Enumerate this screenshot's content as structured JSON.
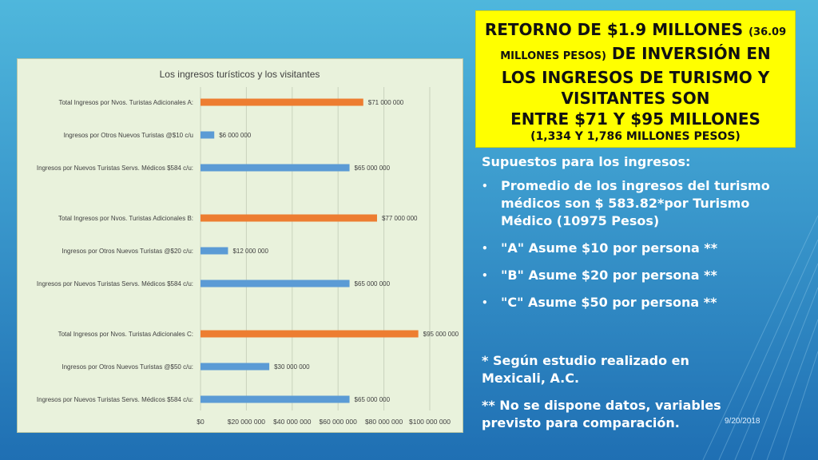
{
  "headline": {
    "part1": "RETORNO DE $1.9 MILLONES ",
    "part1_small": "(36.09",
    "part2_small": "MILLONES PESOS)",
    "part2": " DE INVERSIÓN EN",
    "line3": "LOS INGRESOS DE TURISMO Y",
    "line4": "VISITANTES SON",
    "line5": "ENTRE $71 Y $95 MILLONES",
    "line6": "(1,334 Y 1,786 MILLONES PESOS)"
  },
  "assumptions": {
    "heading": "Supuestos para los ingresos:",
    "items": [
      "Promedio de los ingresos del turismo médicos son $ 583.82*por Turismo Médico (10975 Pesos)",
      "\"A\" Asume $10 por persona **",
      "\"B\" Asume $20 por persona **",
      "\"C\" Asume $50 por persona **"
    ]
  },
  "footnotes": {
    "note1": "* Según estudio realizado en Mexicali, A.C.",
    "note2": "** No se dispone datos, variables previsto para comparación."
  },
  "date": "9/20/2018",
  "colors": {
    "blue_bar": "#5b9bd5",
    "orange_bar": "#ed7d31",
    "grid": "#c9d3bd",
    "headline_bg": "#ffff00"
  },
  "chart_data": {
    "type": "bar",
    "orientation": "horizontal",
    "title": "Los ingresos turísticos y los visitantes",
    "xlim": [
      0,
      100000000
    ],
    "x_ticks": [
      0,
      20000000,
      40000000,
      60000000,
      80000000,
      100000000
    ],
    "x_tick_labels": [
      "$0",
      "$20 000 000",
      "$40 000 000",
      "$60 000 000",
      "$80 000 000",
      "$100 000 000"
    ],
    "grid": true,
    "legend": "none",
    "bars": [
      {
        "label": "Total Ingresos por Nvos. Turistas Adicionales A:",
        "value": 71000000,
        "value_label": "$71 000 000",
        "color": "orange"
      },
      {
        "label": "Ingresos por Otros Nuevos Turistas @$10 c/u",
        "value": 6000000,
        "value_label": "$6 000 000",
        "color": "blue"
      },
      {
        "label": "Ingresos por Nuevos Turistas Servs. Médicos $584 c/u:",
        "value": 65000000,
        "value_label": "$65 000 000",
        "color": "blue"
      },
      {
        "label": "Total Ingresos por Nvos. Turistas Adicionales B:",
        "value": 77000000,
        "value_label": "$77 000 000",
        "color": "orange"
      },
      {
        "label": "Ingresos por Otros Nuevos Turistas @$20 c/u:",
        "value": 12000000,
        "value_label": "$12 000 000",
        "color": "blue"
      },
      {
        "label": "Ingresos por Nuevos Turistas Servs. Médicos $584 c/u:",
        "value": 65000000,
        "value_label": "$65 000 000",
        "color": "blue"
      },
      {
        "label": "Total Ingresos por Nvos. Turistas Adicionales C:",
        "value": 95000000,
        "value_label": "$95 000 000",
        "color": "orange"
      },
      {
        "label": "Ingresos por Otros Nuevos Turistas @$50 c/u:",
        "value": 30000000,
        "value_label": "$30 000 000",
        "color": "blue"
      },
      {
        "label": "Ingresos por Nuevos Turistas Servs. Médicos $584 c/u:",
        "value": 65000000,
        "value_label": "$65 000 000",
        "color": "blue"
      }
    ]
  }
}
